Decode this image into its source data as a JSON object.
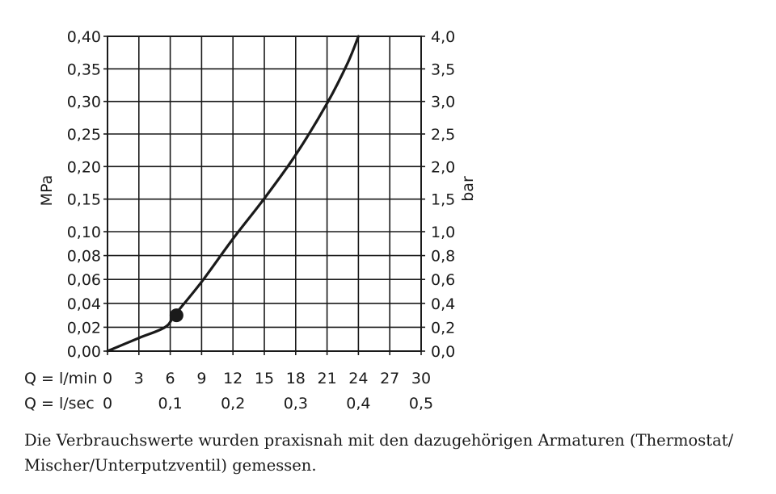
{
  "chart_data": {
    "type": "line",
    "y_left": {
      "label": "MPa",
      "ticks": [
        {
          "v": 0.0,
          "t": "0,00"
        },
        {
          "v": 0.02,
          "t": "0,02"
        },
        {
          "v": 0.04,
          "t": "0,04"
        },
        {
          "v": 0.06,
          "t": "0,06"
        },
        {
          "v": 0.08,
          "t": "0,08"
        },
        {
          "v": 0.1,
          "t": "0,10"
        },
        {
          "v": 0.15,
          "t": "0,15"
        },
        {
          "v": 0.2,
          "t": "0,20"
        },
        {
          "v": 0.25,
          "t": "0,25"
        },
        {
          "v": 0.3,
          "t": "0,30"
        },
        {
          "v": 0.35,
          "t": "0,35"
        },
        {
          "v": 0.4,
          "t": "0,40"
        }
      ],
      "scale": "piecewise-linear (0–0,10 and 0,10–0,40)"
    },
    "y_right": {
      "label": "bar",
      "ticks": [
        "0,0",
        "0,2",
        "0,4",
        "0,6",
        "0,8",
        "1,0",
        "1,5",
        "2,0",
        "2,5",
        "3,0",
        "3,5",
        "4,0"
      ]
    },
    "x_primary": {
      "label": "Q = l/min",
      "ticks": [
        "0",
        "3",
        "6",
        "9",
        "12",
        "15",
        "18",
        "21",
        "24",
        "27",
        "30"
      ],
      "xlim": [
        0,
        30
      ]
    },
    "x_secondary": {
      "label": "Q = l/sec",
      "ticks": [
        {
          "v": 0.0,
          "t": "0"
        },
        {
          "v": 0.1,
          "t": "0,1"
        },
        {
          "v": 0.2,
          "t": "0,2"
        },
        {
          "v": 0.3,
          "t": "0,3"
        },
        {
          "v": 0.4,
          "t": "0,4"
        },
        {
          "v": 0.5,
          "t": "0,5"
        }
      ]
    },
    "grid": true,
    "series": [
      {
        "x": [
          0,
          3,
          5.5,
          6.5,
          9,
          12,
          15,
          18,
          21,
          23,
          24
        ],
        "y": [
          0,
          0.011,
          0.02,
          0.031,
          0.058,
          0.094,
          0.151,
          0.218,
          0.297,
          0.36,
          0.4
        ]
      }
    ],
    "marker": {
      "x": 6.6,
      "y": 0.03
    }
  },
  "caption": {
    "line1": "Die Verbrauchswerte wurden praxisnah mit den dazugehörigen Armaturen (Thermostat/",
    "line2": "Mischer/Unterputzventil) gemessen."
  }
}
